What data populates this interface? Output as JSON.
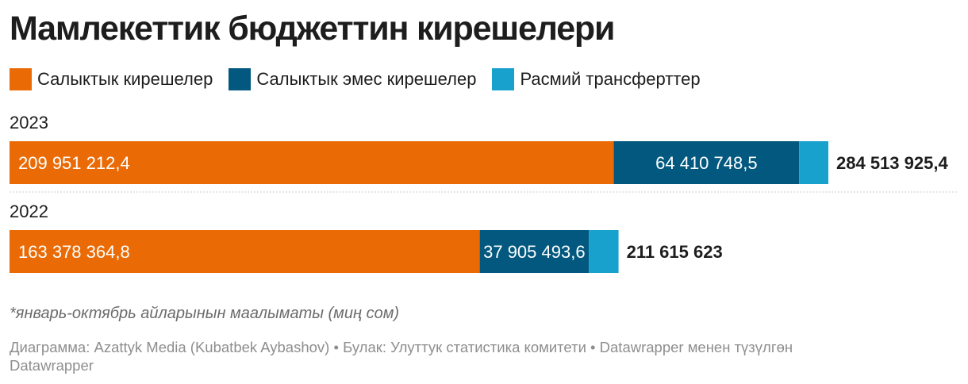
{
  "title": "Мамлекеттик бюджеттин кирешелери",
  "notes": "*январь-октябрь айларынын маалыматы (миң сом)",
  "source": "Диаграмма: Azattyk Media (Kubatbek Aybashov) • Булак: Улуттук статистика комитети • Datawrapper менен түзүлгөн",
  "credit": "Datawrapper",
  "chart_data": {
    "type": "bar",
    "orientation": "horizontal",
    "stacked": true,
    "categories": [
      "2023",
      "2022"
    ],
    "series": [
      {
        "name": "Салыктык кирешелер",
        "color": "#ea6b06",
        "values": [
          209951212.4,
          163378364.8
        ],
        "labels": [
          "209 951 212,4",
          "163 378 364,8"
        ]
      },
      {
        "name": "Салыктык эмес кирешелер",
        "color": "#02587f",
        "values": [
          64410748.5,
          37905493.6
        ],
        "labels": [
          "64 410 748,5",
          "37 905 493,6"
        ]
      },
      {
        "name": "Расмий трансферттер",
        "color": "#18a1cd",
        "values": [
          10151964.5,
          10331764.6
        ],
        "labels": [
          "",
          ""
        ]
      }
    ],
    "totals": [
      284513925.4,
      211615623
    ],
    "total_labels": [
      "284 513 925,4",
      "211 615 623"
    ],
    "xlim": [
      0,
      284513925.4
    ],
    "grid": false,
    "legend": "top-left"
  }
}
